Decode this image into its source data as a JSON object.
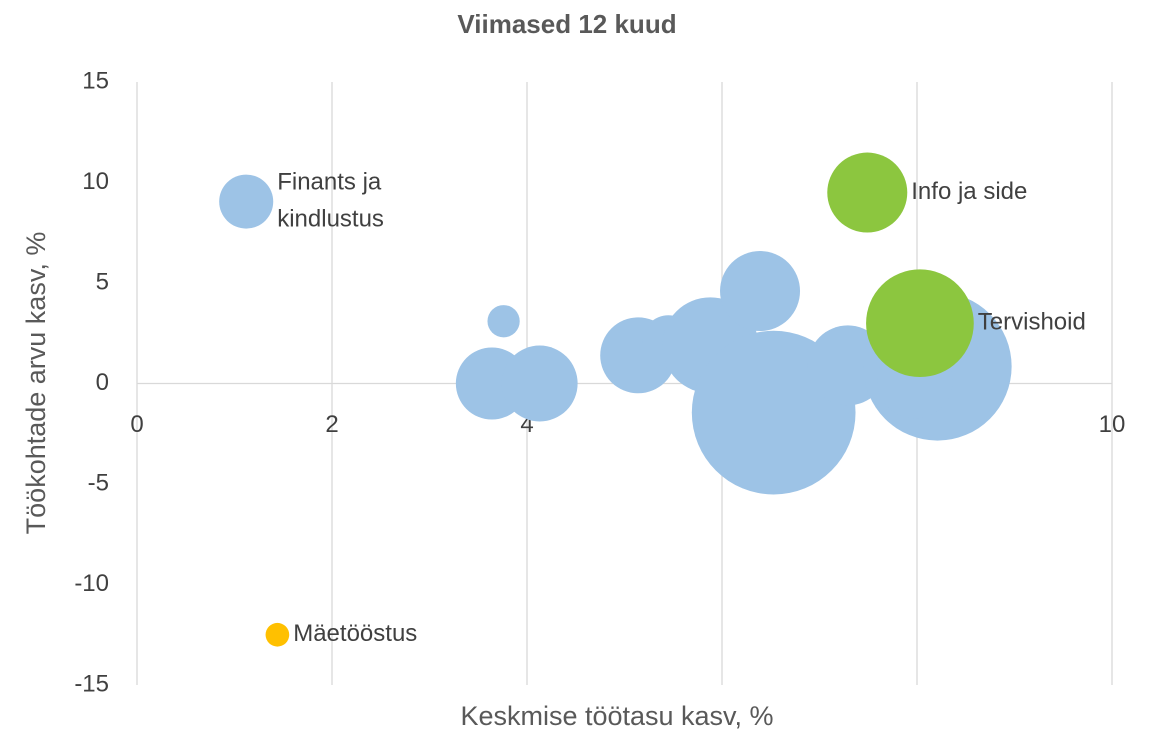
{
  "chart_data": {
    "type": "bubble",
    "title": "Viimased 12 kuud",
    "xlabel": "Keskmise töötasu kasv, %",
    "ylabel": "Töökohtade arvu kasv, %",
    "xlim": [
      0,
      10
    ],
    "xticks": [
      0,
      2,
      4,
      6,
      8,
      10
    ],
    "ylim": [
      -15,
      15
    ],
    "yticks": [
      -15,
      -10,
      -5,
      0,
      5,
      10,
      15
    ],
    "grid": true,
    "points": [
      {
        "x": 1.12,
        "y": 9.05,
        "size": 7.3,
        "color": "#9dc3e6",
        "label": [
          "Finants ja",
          "kindlustus"
        ]
      },
      {
        "x": 3.76,
        "y": 3.1,
        "size": 2.6,
        "color": "#9dc3e6"
      },
      {
        "x": 3.64,
        "y": 0,
        "size": 13,
        "color": "#9dc3e6"
      },
      {
        "x": 4.13,
        "y": 0,
        "size": 14.4,
        "color": "#9dc3e6"
      },
      {
        "x": 5.14,
        "y": 1.4,
        "size": 14.4,
        "color": "#9dc3e6"
      },
      {
        "x": 5.45,
        "y": 2.1,
        "size": 6.8,
        "color": "#9dc3e6"
      },
      {
        "x": 5.88,
        "y": 1.9,
        "size": 23,
        "color": "#9dc3e6"
      },
      {
        "x": 6.39,
        "y": 4.6,
        "size": 16,
        "color": "#9dc3e6"
      },
      {
        "x": 6.53,
        "y": -1.45,
        "size": 67,
        "color": "#9dc3e6"
      },
      {
        "x": 7.29,
        "y": 0.9,
        "size": 16,
        "color": "#9dc3e6"
      },
      {
        "x": 8.21,
        "y": 0.85,
        "size": 55,
        "color": "#9dc3e6"
      },
      {
        "x": 7.98,
        "y": 0.15,
        "size": 14.4,
        "color": "#9dc3e6"
      },
      {
        "x": 7.49,
        "y": 9.5,
        "size": 16,
        "color": "#8cc63f",
        "label": [
          "Info ja side"
        ]
      },
      {
        "x": 8.03,
        "y": 3.0,
        "size": 29,
        "color": "#8cc63f",
        "label": [
          "Tervishoid"
        ]
      },
      {
        "x": 1.44,
        "y": -12.5,
        "size": 1.4,
        "color": "#ffc000",
        "label": [
          "Mäetööstus"
        ]
      }
    ]
  }
}
